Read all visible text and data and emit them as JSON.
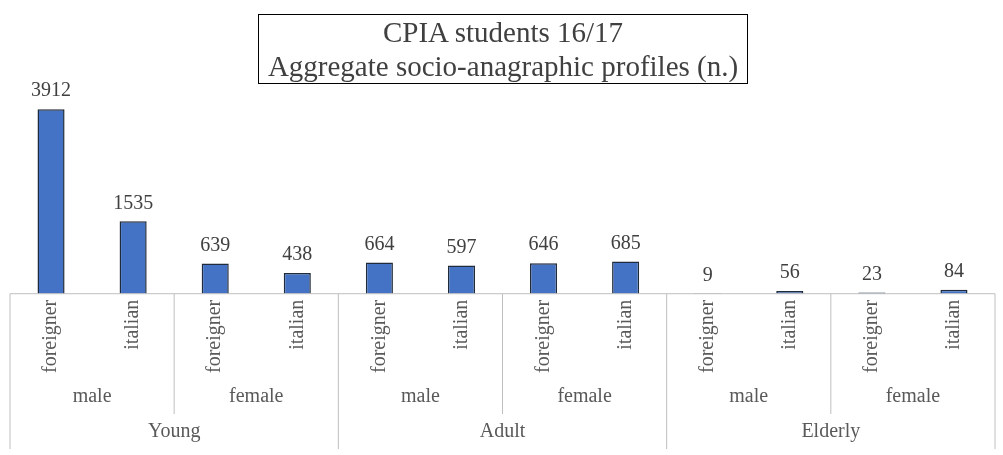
{
  "chart_data": {
    "type": "bar",
    "title": "CPIA students 16/17",
    "subtitle": "Aggregate socio-anagraphic profiles (n.)",
    "categories": [
      "foreigner",
      "italian",
      "foreigner",
      "italian",
      "foreigner",
      "italian",
      "foreigner",
      "italian",
      "foreigner",
      "italian",
      "foreigner",
      "italian"
    ],
    "values": [
      3912,
      1535,
      639,
      438,
      664,
      597,
      646,
      685,
      9,
      56,
      23,
      84
    ],
    "color": "#4472c4",
    "data_labels": true,
    "legend": false,
    "grid": false,
    "annotations": [
      "male",
      "female",
      "male",
      "female",
      "male",
      "female",
      "Young",
      "Adult",
      "Elderly"
    ]
  }
}
